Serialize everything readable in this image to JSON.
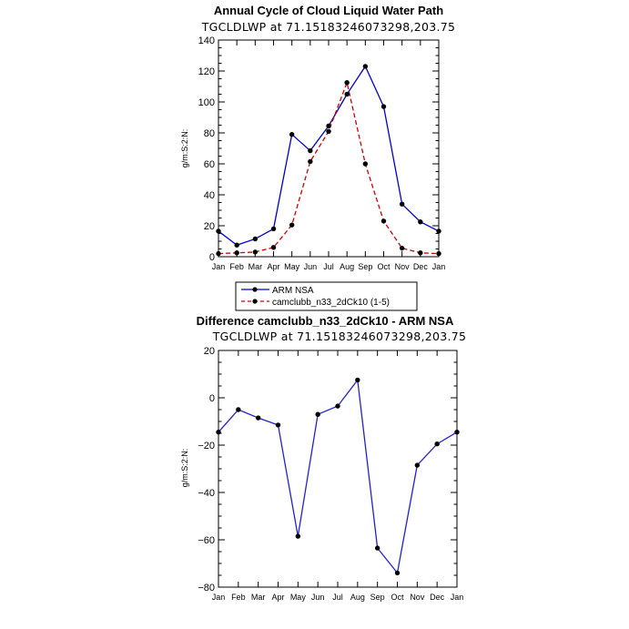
{
  "chart_data": [
    {
      "type": "line",
      "title": "Annual Cycle of Cloud Liquid Water Path",
      "subtitle": "TGCLDLWP at 71.15183246073298,203.75",
      "ylabel": "g/m:S:2:N:",
      "categories": [
        "Jan",
        "Feb",
        "Mar",
        "Apr",
        "May",
        "Jun",
        "Jul",
        "Aug",
        "Sep",
        "Oct",
        "Nov",
        "Dec",
        "Jan"
      ],
      "ylim": [
        0,
        140
      ],
      "yticks": [
        0,
        20,
        40,
        60,
        80,
        100,
        120,
        140
      ],
      "series": [
        {
          "name": "ARM NSA",
          "color": "#0000cc",
          "dash": "solid",
          "values": [
            16.5,
            7.5,
            11.5,
            18,
            79,
            68.5,
            84.5,
            105,
            123,
            97,
            34,
            22.5,
            16.5
          ]
        },
        {
          "name": "camclubb_n33_2dCk10 (1-5)",
          "color": "#cc0000",
          "dash": "dashed",
          "values": [
            2,
            2.5,
            3,
            6,
            20.5,
            61.5,
            81,
            112.5,
            60,
            23,
            5.5,
            2.5,
            2
          ]
        }
      ]
    },
    {
      "type": "line",
      "title": "Difference camclubb_n33_2dCk10 - ARM NSA",
      "subtitle": "TGCLDLWP at 71.15183246073298,203.75",
      "ylabel": "g/m:S:2:N:",
      "categories": [
        "Jan",
        "Feb",
        "Mar",
        "Apr",
        "May",
        "Jun",
        "Jul",
        "Aug",
        "Sep",
        "Oct",
        "Nov",
        "Dec",
        "Jan"
      ],
      "ylim": [
        -80,
        20
      ],
      "yticks": [
        -80,
        -60,
        -40,
        -20,
        0,
        20
      ],
      "series": [
        {
          "color": "#2222cc",
          "dash": "solid",
          "values": [
            -14.5,
            -5,
            -8.5,
            -11.5,
            -58.5,
            -7,
            -3.5,
            7.5,
            -63.5,
            -74,
            -28.5,
            -19.5,
            -14.5
          ]
        }
      ]
    }
  ]
}
